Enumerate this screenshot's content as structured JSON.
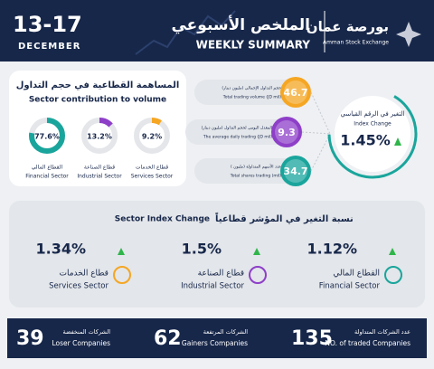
{
  "header": {
    "date": "13-17",
    "month": "DECEMBER",
    "title_ar": "الملخص الأسبوعي",
    "title_en": "WEEKLY SUMMARY",
    "logo_ar": "بورصة عمان",
    "logo_en": "Amman Stock Exchange"
  },
  "sector_contribution": {
    "title_ar": "المساهمة القطاعية في حجم التداول",
    "title_en": "Sector contribution to volume",
    "items": [
      {
        "value": 9.2,
        "label": "9.2%",
        "name_ar": "قطاع الخدمات",
        "name_en": "Services Sector",
        "color": "#f5a623"
      },
      {
        "value": 13.2,
        "label": "13.2%",
        "name_ar": "قطاع الصناعة",
        "name_en": "Industrial Sector",
        "color": "#8e3fc8"
      },
      {
        "value": 77.6,
        "label": "77.6%",
        "name_ar": "القطاع المالي",
        "name_en": "Financial Sector",
        "color": "#1aa59c"
      }
    ]
  },
  "stats": [
    {
      "value": 46.7,
      "ar": "حجم التداول الإجمالي (مليون دينار)",
      "en": "Total trading volume (JD mil)",
      "color": "#f5a623"
    },
    {
      "value": 9.3,
      "ar": "المعدل اليومي لحجم التداول (مليون دينار)",
      "en": "The average daily trading (JD mil)",
      "color": "#8e3fc8"
    },
    {
      "value": 34.7,
      "ar": "عدد الأسهم المتداولة (مليون )",
      "en": "Total shares trading (mil)",
      "color": "#1aa59c"
    }
  ],
  "index_change": {
    "ar": "التغير في الرقم القياسي",
    "en": "Index Change",
    "value": "1.45%"
  },
  "sector_index": {
    "title_en": "Sector Index Change",
    "title_ar": "نسبة التغير في المؤشر قطاعياً",
    "items": [
      {
        "value": "1.34%",
        "ar": "قطاع الخدمات",
        "en": "Services Sector",
        "color": "#f5a623"
      },
      {
        "value": "1.5%",
        "ar": "قطاع الصناعة",
        "en": "Industrial Sector",
        "color": "#8e3fc8"
      },
      {
        "value": "1.12%",
        "ar": "القطاع المالي",
        "en": "Financial Sector",
        "color": "#1aa59c"
      }
    ]
  },
  "footer": [
    {
      "value": 39,
      "ar": "الشركات المنخفضة",
      "en": "Loser Companies"
    },
    {
      "value": 62,
      "ar": "الشركات المرتفعة",
      "en": "Gainers Companies"
    },
    {
      "value": 135,
      "ar": "عدد الشركات المتداولة",
      "en": "NO. of traded Companies"
    }
  ]
}
